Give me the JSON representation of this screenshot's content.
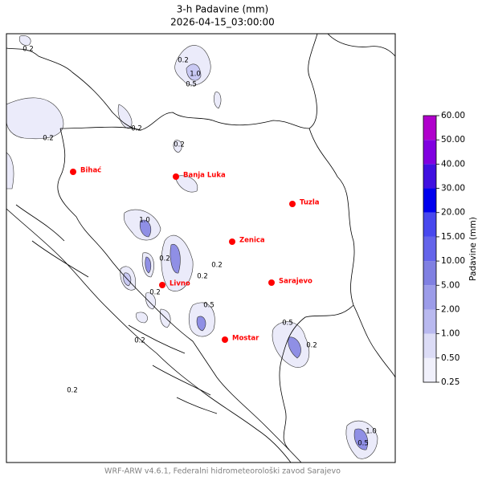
{
  "header": {
    "title": "3-h Padavine (mm)",
    "subtitle": "2026-04-15_03:00:00"
  },
  "cities": [
    "Bihać",
    "Banja Luka",
    "Tuzla",
    "Zenica",
    "Sarajevo",
    "Livno",
    "Mostar"
  ],
  "contour_labels": [
    "0.2",
    "0.2",
    "1.0",
    "0.5",
    "0.2",
    "0.2",
    "0.2",
    "0.2",
    "1.0",
    "0.2",
    "0.2",
    "0.5",
    "0.2",
    "0.2",
    "0.5",
    "0.2",
    "0.2",
    "1.0",
    "0.5"
  ],
  "colorbar": {
    "label": "Padavine (mm)",
    "ticks": [
      {
        "value": 0.25,
        "label": "0.25"
      },
      {
        "value": 0.5,
        "label": "0.50"
      },
      {
        "value": 1,
        "label": "1.00"
      },
      {
        "value": 2,
        "label": "2.00"
      },
      {
        "value": 5,
        "label": "5.00"
      },
      {
        "value": 10,
        "label": "10.00"
      },
      {
        "value": 15,
        "label": "15.00"
      },
      {
        "value": 20,
        "label": "20.00"
      },
      {
        "value": 30,
        "label": "30.00"
      },
      {
        "value": 40,
        "label": "40.00"
      },
      {
        "value": 50,
        "label": "50.00"
      },
      {
        "value": 60,
        "label": "60.00"
      }
    ],
    "colors": [
      "#f0f0fb",
      "#dcdcf6",
      "#b9b9ef",
      "#9c9ce9",
      "#8080e2",
      "#6464ea",
      "#4848ee",
      "#0000ee",
      "#4010e0",
      "#8000e0",
      "#b000cc"
    ]
  },
  "footer": "WRF-ARW v4.6.1, Federalni hidrometeorološki zavod Sarajevo"
}
